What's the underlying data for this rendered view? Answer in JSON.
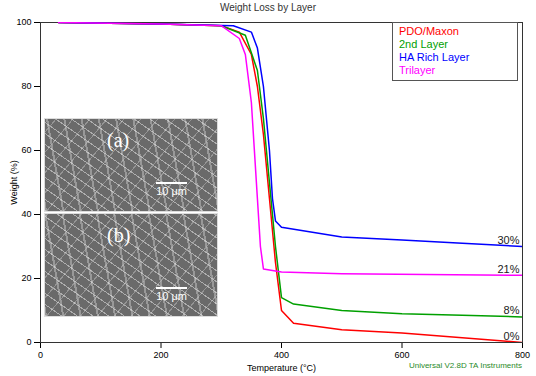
{
  "chart_data": {
    "type": "line",
    "title": "Weight Loss by Layer",
    "x_label": "Temperature (°C)",
    "y_label": "Weight (%)",
    "xlim": [
      0,
      800
    ],
    "xticks": [
      0,
      200,
      400,
      600,
      800
    ],
    "ylim": [
      0,
      100
    ],
    "yticks": [
      0,
      20,
      40,
      60,
      80,
      100
    ],
    "grid": false,
    "legend": "top-right",
    "series": [
      {
        "name": "PDO/Maxon",
        "color": "#ff0000",
        "x": [
          30,
          200,
          300,
          330,
          350,
          360,
          370,
          380,
          390,
          400,
          420,
          500,
          600,
          700,
          800
        ],
        "values": [
          100,
          99.5,
          99,
          97,
          90,
          80,
          65,
          45,
          25,
          10,
          6,
          4,
          3,
          1.5,
          0
        ]
      },
      {
        "name": "2nd Layer",
        "color": "#00a000",
        "x": [
          30,
          200,
          300,
          340,
          360,
          370,
          380,
          390,
          400,
          420,
          500,
          600,
          700,
          800
        ],
        "values": [
          100,
          99.5,
          99,
          96,
          85,
          70,
          50,
          30,
          14,
          12,
          10,
          9,
          8.5,
          8
        ]
      },
      {
        "name": "HA Rich Layer",
        "color": "#0000ff",
        "x": [
          30,
          200,
          320,
          350,
          360,
          370,
          380,
          385,
          390,
          400,
          500,
          600,
          700,
          800
        ],
        "values": [
          100,
          99.5,
          99,
          97,
          92,
          80,
          60,
          45,
          38,
          36,
          33,
          32,
          31,
          30
        ]
      },
      {
        "name": "Trilayer",
        "color": "#ff00ff",
        "x": [
          30,
          200,
          300,
          330,
          340,
          350,
          360,
          365,
          370,
          400,
          500,
          800
        ],
        "values": [
          100,
          99.5,
          99,
          95,
          90,
          75,
          45,
          30,
          23,
          22,
          21.5,
          21
        ]
      }
    ],
    "annotations": [
      {
        "text": "30%",
        "x": 800,
        "y": 30
      },
      {
        "text": "21%",
        "x": 800,
        "y": 21
      },
      {
        "text": "8%",
        "x": 800,
        "y": 8
      },
      {
        "text": "0%",
        "x": 800,
        "y": 0
      }
    ],
    "insets": [
      {
        "label": "(a)",
        "scale_bar": "10 μm"
      },
      {
        "label": "(b)",
        "scale_bar": "10 μm"
      }
    ],
    "footer": "Universal V2.8D TA Instruments"
  }
}
